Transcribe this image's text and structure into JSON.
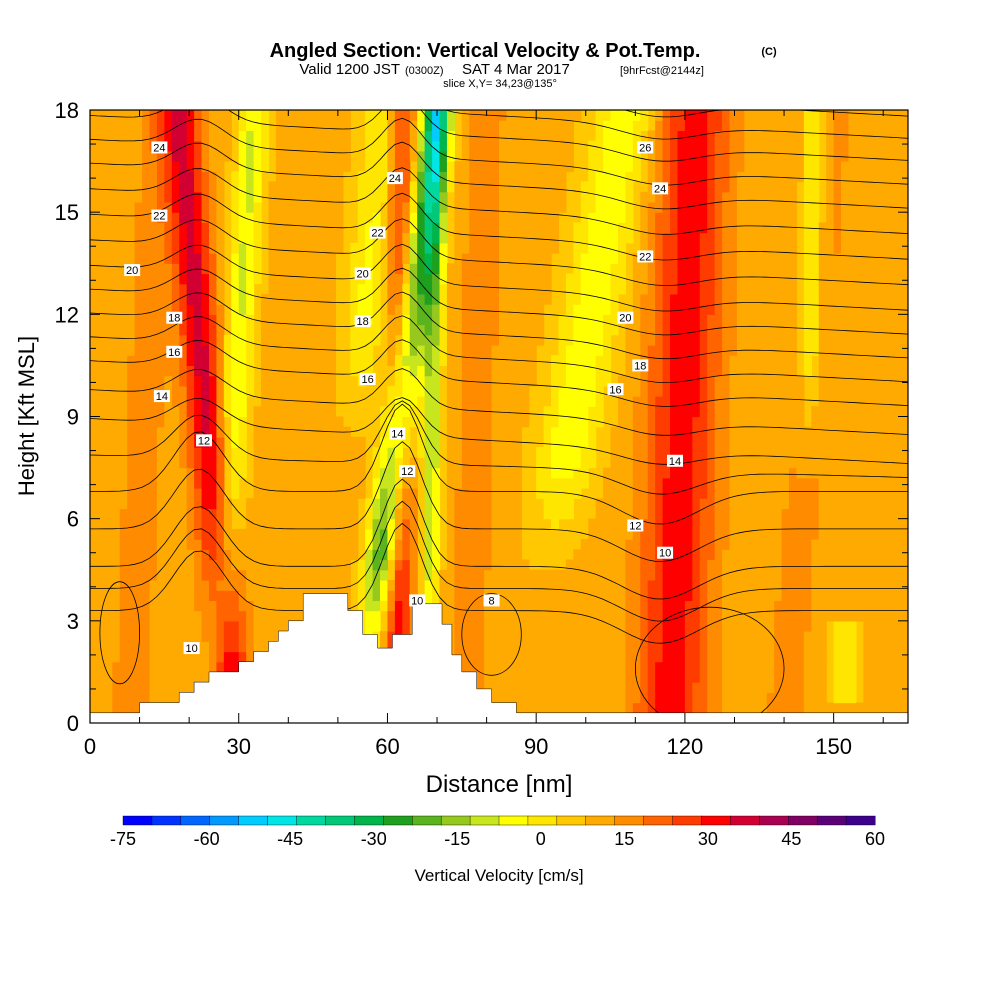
{
  "chart_data": {
    "type": "heatmap",
    "title": "Angled Section: Vertical Velocity & Pot.Temp.",
    "title_tag": "(C)",
    "subtitle": {
      "valid": "Valid 1200 JST",
      "utc": "(0300Z)",
      "date": "SAT 4 Mar 2017",
      "forecast": "[9hrFcst@2144z]"
    },
    "slice": "slice X,Y= 34,23@135°",
    "xlabel": "Distance [nm]",
    "ylabel": "Height [Kft MSL]",
    "xlim": [
      0,
      165
    ],
    "ylim": [
      0,
      18
    ],
    "x_ticks": [
      0,
      30,
      60,
      90,
      120,
      150
    ],
    "y_ticks": [
      0,
      3,
      6,
      9,
      12,
      15,
      18
    ],
    "colorbar": {
      "label": "Vertical Velocity [cm/s]",
      "ticks": [
        -75,
        -60,
        -45,
        -30,
        -15,
        0,
        15,
        30,
        45,
        60
      ],
      "range": [
        -75,
        60
      ],
      "colors": [
        "#0000ff",
        "#0033ff",
        "#0066ff",
        "#0099ff",
        "#00ccff",
        "#00e6e6",
        "#00d8a0",
        "#00c878",
        "#00b44c",
        "#1ea01e",
        "#5ab41e",
        "#96c81e",
        "#c8e61e",
        "#ffff00",
        "#ffe600",
        "#ffc800",
        "#ffaa00",
        "#ff8c00",
        "#ff6400",
        "#ff3c00",
        "#ff0000",
        "#d20032",
        "#aa0050",
        "#820064",
        "#5a0078",
        "#3c008c"
      ]
    },
    "updraft_bands": [
      {
        "x0": 29,
        "x1": 18,
        "intensity": 30
      },
      {
        "x0": 62,
        "x1": 63,
        "intensity": 30
      },
      {
        "x0": 67,
        "x1": 68,
        "intensity": 15
      },
      {
        "x0": 117,
        "x1": 122,
        "intensity": 32
      }
    ],
    "downdraft_bands": [
      {
        "x0": 58,
        "x1": 72,
        "intensity": -30
      },
      {
        "x0": 25,
        "x1": 30,
        "intensity": -15
      },
      {
        "x0": 85,
        "x1": 110,
        "intensity": -15
      }
    ],
    "terrain_profile": [
      [
        0,
        0.3
      ],
      [
        10,
        0.3
      ],
      [
        10,
        0.6
      ],
      [
        18,
        0.6
      ],
      [
        18,
        0.9
      ],
      [
        21,
        0.9
      ],
      [
        21,
        1.2
      ],
      [
        24,
        1.2
      ],
      [
        24,
        1.5
      ],
      [
        30,
        1.5
      ],
      [
        30,
        1.8
      ],
      [
        33,
        1.8
      ],
      [
        33,
        2.1
      ],
      [
        36,
        2.1
      ],
      [
        36,
        2.4
      ],
      [
        38,
        2.4
      ],
      [
        38,
        2.7
      ],
      [
        40,
        2.7
      ],
      [
        40,
        3.0
      ],
      [
        43,
        3.0
      ],
      [
        43,
        3.8
      ],
      [
        52,
        3.8
      ],
      [
        52,
        3.3
      ],
      [
        55,
        3.3
      ],
      [
        55,
        2.6
      ],
      [
        58,
        2.6
      ],
      [
        58,
        2.2
      ],
      [
        61,
        2.2
      ],
      [
        61,
        2.6
      ],
      [
        65,
        2.6
      ],
      [
        65,
        3.5
      ],
      [
        71,
        3.5
      ],
      [
        71,
        2.9
      ],
      [
        73,
        2.9
      ],
      [
        73,
        2.0
      ],
      [
        75,
        2.0
      ],
      [
        75,
        1.5
      ],
      [
        78,
        1.5
      ],
      [
        78,
        1.0
      ],
      [
        81,
        1.0
      ],
      [
        81,
        0.6
      ],
      [
        86,
        0.6
      ],
      [
        86,
        0.3
      ],
      [
        165,
        0.3
      ]
    ],
    "theta_contour_labels": [
      {
        "text": "24",
        "x": 14,
        "y": 16.9
      },
      {
        "text": "22",
        "x": 14,
        "y": 14.9
      },
      {
        "text": "20",
        "x": 8.5,
        "y": 13.3
      },
      {
        "text": "18",
        "x": 17,
        "y": 11.9
      },
      {
        "text": "16",
        "x": 17,
        "y": 10.9
      },
      {
        "text": "14",
        "x": 14.5,
        "y": 9.6
      },
      {
        "text": "12",
        "x": 23,
        "y": 8.3
      },
      {
        "text": "10",
        "x": 20.5,
        "y": 2.2
      },
      {
        "text": "24",
        "x": 61.5,
        "y": 16.0
      },
      {
        "text": "22",
        "x": 58,
        "y": 14.4
      },
      {
        "text": "20",
        "x": 55,
        "y": 13.2
      },
      {
        "text": "18",
        "x": 55,
        "y": 11.8
      },
      {
        "text": "16",
        "x": 56,
        "y": 10.1
      },
      {
        "text": "14",
        "x": 62,
        "y": 8.5
      },
      {
        "text": "12",
        "x": 64,
        "y": 7.4
      },
      {
        "text": "10",
        "x": 66,
        "y": 3.6
      },
      {
        "text": "8",
        "x": 81,
        "y": 3.6
      },
      {
        "text": "26",
        "x": 112,
        "y": 16.9
      },
      {
        "text": "24",
        "x": 115,
        "y": 15.7
      },
      {
        "text": "22",
        "x": 112,
        "y": 13.7
      },
      {
        "text": "20",
        "x": 108,
        "y": 11.9
      },
      {
        "text": "18",
        "x": 111,
        "y": 10.5
      },
      {
        "text": "16",
        "x": 106,
        "y": 9.8
      },
      {
        "text": "14",
        "x": 118,
        "y": 7.7
      },
      {
        "text": "12",
        "x": 110,
        "y": 5.8
      },
      {
        "text": "10",
        "x": 116,
        "y": 5.0
      }
    ]
  }
}
